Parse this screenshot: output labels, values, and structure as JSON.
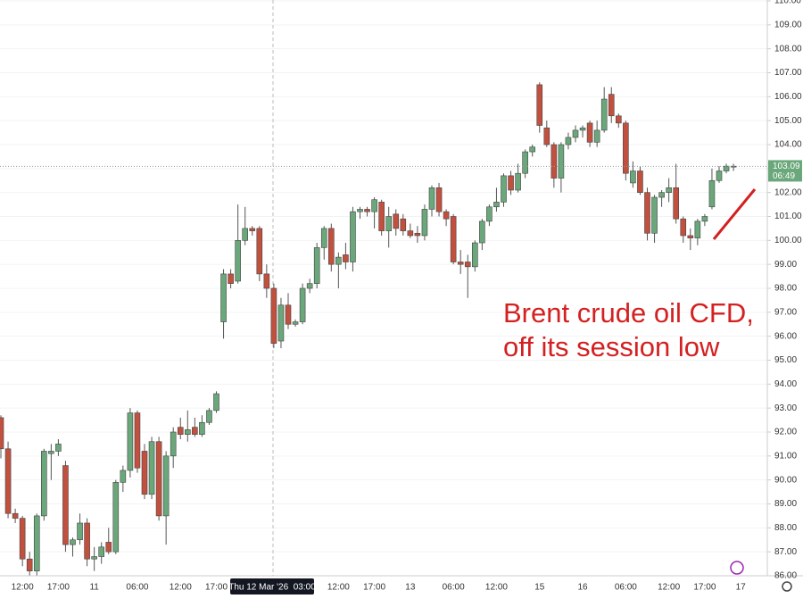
{
  "chart_data": {
    "type": "candlestick",
    "categories": [
      null,
      null,
      null,
      "12:00",
      null,
      null,
      null,
      null,
      "17:00",
      null,
      null,
      null,
      null,
      "11",
      null,
      null,
      null,
      null,
      null,
      "06:00",
      null,
      null,
      null,
      null,
      null,
      "12:00",
      null,
      null,
      null,
      null,
      "17:00",
      null,
      null,
      null,
      null,
      null,
      null,
      null,
      null,
      null,
      null,
      null,
      null,
      null,
      null,
      null,
      null,
      "12:00",
      null,
      null,
      null,
      null,
      "17:00",
      null,
      null,
      null,
      null,
      "13",
      null,
      null,
      null,
      null,
      null,
      "06:00",
      null,
      null,
      null,
      null,
      null,
      "12:00",
      null,
      null,
      null,
      null,
      null,
      "15",
      null,
      null,
      null,
      null,
      null,
      "16",
      null,
      null,
      null,
      null,
      null,
      "06:00",
      null,
      null,
      null,
      null,
      null,
      "12:00",
      null,
      null,
      null,
      null,
      "17:00",
      null,
      null,
      null,
      null,
      "17"
    ],
    "open": [
      92.6,
      91.3,
      88.6,
      88.4,
      86.7,
      86.2,
      88.5,
      91.1,
      91.2,
      90.6,
      87.3,
      87.5,
      88.2,
      86.7,
      86.8,
      87.4,
      87.0,
      89.9,
      90.4,
      92.8,
      91.2,
      89.4,
      91.6,
      88.5,
      91.0,
      92.2,
      91.9,
      92.2,
      91.9,
      92.4,
      92.9,
      96.6,
      98.6,
      98.3,
      100.0,
      100.5,
      100.5,
      98.6,
      98.0,
      95.8,
      97.3,
      96.5,
      96.6,
      98.0,
      98.2,
      99.7,
      100.5,
      99.0,
      99.4,
      99.1,
      101.2,
      101.3,
      101.2,
      101.6,
      100.4,
      101.1,
      100.9,
      100.4,
      100.3,
      100.2,
      101.3,
      102.2,
      101.2,
      101.0,
      99.1,
      99.1,
      98.9,
      99.9,
      100.8,
      101.4,
      101.6,
      102.7,
      102.1,
      102.8,
      103.7,
      106.5,
      104.7,
      104.0,
      102.6,
      104.0,
      104.3,
      104.6,
      104.9,
      104.1,
      104.6,
      106.1,
      105.2,
      104.9,
      102.4,
      102.9,
      102.0,
      100.3,
      101.8,
      102.0,
      102.2,
      100.9,
      100.2,
      100.1,
      100.8,
      101.4,
      102.5,
      102.9,
      103.1,
      null
    ],
    "high": [
      92.7,
      91.6,
      88.8,
      88.5,
      87.0,
      88.6,
      91.3,
      91.5,
      91.7,
      90.8,
      87.6,
      88.6,
      88.4,
      87.2,
      87.4,
      88.0,
      90.0,
      90.6,
      93.0,
      92.9,
      91.5,
      91.8,
      91.8,
      91.2,
      92.2,
      92.6,
      92.9,
      92.6,
      92.7,
      93.0,
      93.7,
      98.8,
      98.8,
      101.5,
      101.4,
      100.6,
      100.6,
      99.0,
      98.2,
      97.6,
      97.8,
      96.7,
      98.2,
      98.4,
      99.9,
      100.6,
      100.7,
      99.5,
      99.9,
      101.4,
      101.4,
      101.4,
      101.8,
      101.7,
      101.4,
      101.3,
      101.1,
      100.7,
      100.6,
      101.5,
      102.3,
      102.4,
      101.3,
      101.1,
      99.6,
      99.4,
      100.0,
      100.9,
      101.5,
      102.2,
      102.8,
      102.9,
      103.2,
      103.8,
      104.0,
      106.6,
      105.0,
      104.1,
      104.1,
      104.5,
      104.8,
      104.8,
      105.0,
      105.0,
      106.4,
      106.4,
      105.3,
      105.0,
      103.3,
      103.1,
      102.2,
      101.9,
      102.1,
      102.6,
      103.2,
      101.0,
      100.5,
      100.9,
      101.1,
      103.0,
      103.1,
      103.2,
      103.2,
      null
    ],
    "low": [
      90.9,
      88.4,
      88.2,
      86.4,
      86.0,
      86.0,
      88.3,
      90.0,
      91.0,
      87.0,
      86.8,
      87.3,
      86.4,
      86.2,
      86.5,
      86.9,
      86.9,
      89.5,
      90.1,
      90.3,
      89.2,
      89.2,
      88.3,
      87.3,
      90.5,
      91.7,
      91.6,
      91.8,
      91.8,
      92.3,
      92.8,
      95.9,
      98.0,
      98.2,
      99.8,
      100.2,
      98.3,
      97.6,
      95.5,
      95.5,
      96.3,
      96.4,
      96.5,
      97.8,
      98.0,
      99.2,
      98.7,
      98.0,
      98.8,
      98.7,
      100.9,
      101.0,
      100.5,
      100.2,
      99.7,
      100.2,
      100.2,
      100.1,
      99.9,
      100.0,
      101.0,
      101.0,
      100.6,
      99.0,
      98.6,
      97.6,
      98.7,
      99.6,
      100.6,
      101.2,
      101.4,
      101.9,
      102.0,
      102.6,
      103.5,
      104.5,
      103.9,
      102.2,
      102.0,
      103.8,
      104.1,
      104.3,
      103.9,
      103.9,
      104.5,
      104.9,
      104.7,
      102.5,
      102.2,
      101.9,
      100.0,
      99.9,
      101.4,
      101.6,
      100.7,
      99.9,
      99.6,
      99.8,
      100.6,
      101.3,
      102.4,
      102.8,
      102.9,
      null
    ],
    "close": [
      91.3,
      88.6,
      88.4,
      86.7,
      86.2,
      88.5,
      91.2,
      91.2,
      91.5,
      87.3,
      87.5,
      88.2,
      86.7,
      86.8,
      87.2,
      87.0,
      89.9,
      90.4,
      92.8,
      90.5,
      89.4,
      91.6,
      88.5,
      91.0,
      92.0,
      91.9,
      92.1,
      91.9,
      92.4,
      92.9,
      93.6,
      98.6,
      98.2,
      100.0,
      100.5,
      100.4,
      98.6,
      98.0,
      95.7,
      97.3,
      96.5,
      96.6,
      98.0,
      98.2,
      99.7,
      100.5,
      99.0,
      99.3,
      99.1,
      101.2,
      101.3,
      101.2,
      101.7,
      100.4,
      101.0,
      100.5,
      100.4,
      100.2,
      100.2,
      101.3,
      102.2,
      101.2,
      100.9,
      99.1,
      99.0,
      98.9,
      99.9,
      100.8,
      101.4,
      101.6,
      102.7,
      102.1,
      102.8,
      103.7,
      103.9,
      104.8,
      104.0,
      102.6,
      104.0,
      104.3,
      104.6,
      104.7,
      104.1,
      104.6,
      105.9,
      105.2,
      104.9,
      102.8,
      102.9,
      102.0,
      100.3,
      101.8,
      102.0,
      102.2,
      100.9,
      100.2,
      100.1,
      100.8,
      101.0,
      102.5,
      102.9,
      103.1,
      103.1,
      null
    ],
    "up_color": "#6aa77a",
    "down_color": "#c1503f",
    "ylim": [
      86,
      110
    ],
    "yticks": [
      {
        "value": 86,
        "label": "86.00"
      },
      {
        "value": 87,
        "label": "87.00"
      },
      {
        "value": 88,
        "label": "88.00"
      },
      {
        "value": 89,
        "label": "89.00"
      },
      {
        "value": 90,
        "label": "90.00"
      },
      {
        "value": 91,
        "label": "91.00"
      },
      {
        "value": 92,
        "label": "92.00"
      },
      {
        "value": 93,
        "label": "93.00"
      },
      {
        "value": 94,
        "label": "94.00"
      },
      {
        "value": 95,
        "label": "95.00"
      },
      {
        "value": 96,
        "label": "96.00"
      },
      {
        "value": 97,
        "label": "97.00"
      },
      {
        "value": 98,
        "label": "98.00"
      },
      {
        "value": 99,
        "label": "99.00"
      },
      {
        "value": 100,
        "label": "100.00"
      },
      {
        "value": 101,
        "label": "101.00"
      },
      {
        "value": 102,
        "label": "102.00"
      },
      {
        "value": 103,
        "label": "103.00"
      },
      {
        "value": 104,
        "label": "104.00"
      },
      {
        "value": 105,
        "label": "105.00"
      },
      {
        "value": 106,
        "label": "106.00"
      },
      {
        "value": 107,
        "label": "107.00"
      },
      {
        "value": 108,
        "label": "108.00"
      },
      {
        "value": 109,
        "label": "109.00"
      },
      {
        "value": 110,
        "label": "110.00"
      }
    ],
    "grid": true,
    "last_price": 103.09,
    "countdown": "06:49",
    "crosshair_label": "Thu 12 Mar '26  03:00",
    "annotation": [
      "Brent crude oil CFD,",
      "off its session low"
    ],
    "annotation_color": "#d42020"
  }
}
